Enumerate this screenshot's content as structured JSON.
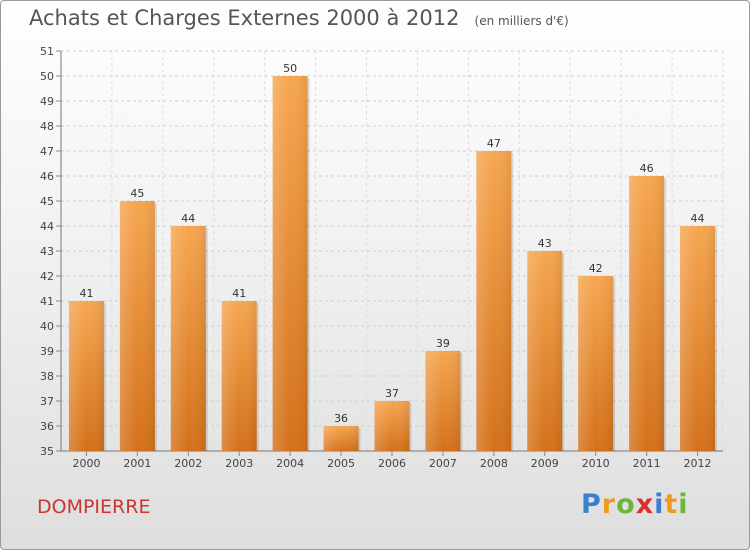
{
  "title": "Achats et Charges Externes 2000 à 2012",
  "unit": "(en milliers d'€)",
  "place": "DOMPIERRE",
  "logo": {
    "letters": [
      "P",
      "r",
      "o",
      "x",
      "i",
      "t",
      "i"
    ],
    "colors": [
      "#3a7fd0",
      "#f29a1f",
      "#6fb43a",
      "#d8322d",
      "#3a7fd0",
      "#f29a1f",
      "#6fb43a"
    ]
  },
  "chart_data": {
    "type": "bar",
    "categories": [
      "2000",
      "2001",
      "2002",
      "2003",
      "2004",
      "2005",
      "2006",
      "2007",
      "2008",
      "2009",
      "2010",
      "2011",
      "2012"
    ],
    "values": [
      41,
      45,
      44,
      41,
      50,
      36,
      37,
      39,
      47,
      43,
      42,
      46,
      44
    ],
    "ylim": [
      35,
      51
    ],
    "yticks": [
      35,
      36,
      37,
      38,
      39,
      40,
      41,
      42,
      43,
      44,
      45,
      46,
      47,
      48,
      49,
      50,
      51
    ],
    "grid": true,
    "bar_color": "#f39a3c",
    "title": "Achats et Charges Externes 2000 à 2012",
    "xlabel": "",
    "ylabel": ""
  }
}
